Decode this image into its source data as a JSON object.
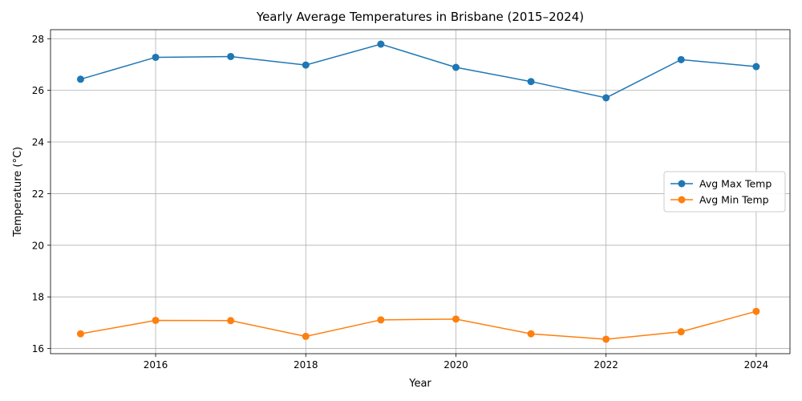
{
  "chart_data": {
    "type": "line",
    "title": "Yearly Average Temperatures in Brisbane (2015–2024)",
    "xlabel": "Year",
    "ylabel": "Temperature (°C)",
    "x": [
      2015,
      2016,
      2017,
      2018,
      2019,
      2020,
      2021,
      2022,
      2023,
      2024
    ],
    "xlim": [
      2014.6,
      2024.45
    ],
    "ylim": [
      15.8,
      28.35
    ],
    "xticks": [
      2016,
      2018,
      2020,
      2022,
      2024
    ],
    "yticks": [
      16,
      18,
      20,
      22,
      24,
      26,
      28
    ],
    "grid": true,
    "legend_position": "center-right",
    "series": [
      {
        "name": "Avg Max Temp",
        "color": "#1f77b4",
        "values": [
          26.43,
          27.28,
          27.31,
          26.98,
          27.79,
          26.89,
          26.34,
          25.71,
          27.19,
          26.92
        ]
      },
      {
        "name": "Avg Min Temp",
        "color": "#ff7f0e",
        "values": [
          16.57,
          17.09,
          17.08,
          16.47,
          17.11,
          17.14,
          16.57,
          16.36,
          16.65,
          17.44
        ]
      }
    ]
  }
}
